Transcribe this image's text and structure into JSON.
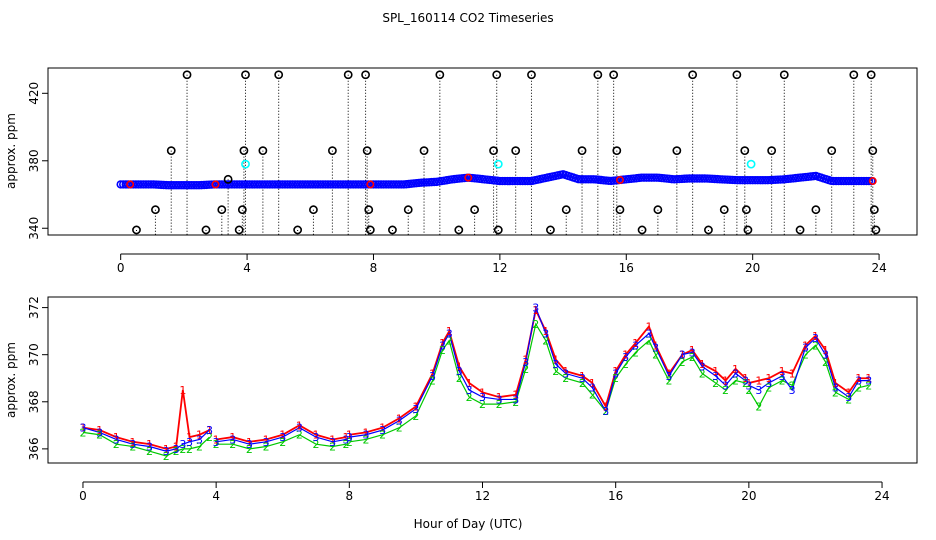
{
  "chart_data": [
    {
      "type": "scatter",
      "title": "SPL_160114  CO2 Timeseries",
      "xlabel": "",
      "ylabel": "approx. ppm",
      "xlim": [
        -2.3,
        25.2
      ],
      "ylim": [
        336,
        435
      ],
      "xticks": [
        0,
        4,
        8,
        12,
        16,
        20,
        24
      ],
      "yticks": [
        340,
        380,
        420
      ],
      "grid": false,
      "legend": "none",
      "colors": {
        "main": "#0000ff",
        "secondary": "#ff0000",
        "outlier": "#000000",
        "flag": "#00ffff"
      },
      "base_series": {
        "marker": "o",
        "x": [
          0,
          0.5,
          1,
          1.5,
          2,
          2.5,
          3,
          3.5,
          4,
          4.5,
          5,
          5.5,
          6,
          6.5,
          7,
          7.5,
          8,
          8.5,
          9,
          9.5,
          10,
          10.5,
          11,
          11.5,
          12,
          12.5,
          13,
          13.5,
          14,
          14.5,
          15,
          15.5,
          16,
          16.5,
          17,
          17.5,
          18,
          18.5,
          19,
          19.5,
          20,
          20.5,
          21,
          21.5,
          22,
          22.5,
          23,
          23.5,
          23.8
        ],
        "y": [
          366,
          366,
          366,
          365.5,
          365.5,
          365.5,
          366,
          366,
          366,
          366,
          366,
          366,
          366,
          366,
          366,
          366,
          366,
          366,
          366,
          367,
          367.5,
          369,
          370,
          369,
          368,
          368,
          368,
          370,
          372,
          369,
          369,
          368,
          369,
          370,
          370,
          369,
          369.5,
          369.5,
          369,
          368.5,
          368.5,
          368.5,
          369,
          370,
          371,
          368,
          368,
          368,
          368
        ]
      },
      "outlier_points": {
        "marker": "o",
        "x": [
          0.5,
          1.1,
          1.6,
          2.1,
          2.7,
          3.2,
          3.4,
          3.75,
          3.85,
          3.9,
          3.95,
          4.5,
          5.0,
          5.6,
          6.1,
          6.7,
          7.2,
          7.75,
          7.8,
          7.85,
          7.9,
          8.6,
          9.1,
          9.6,
          10.1,
          10.7,
          11.2,
          11.8,
          11.9,
          11.95,
          12.5,
          13.0,
          13.6,
          14.1,
          14.6,
          15.1,
          15.6,
          15.7,
          15.8,
          16.5,
          17.0,
          17.6,
          18.1,
          18.6,
          19.1,
          19.5,
          19.75,
          19.8,
          19.85,
          20.6,
          21.0,
          21.5,
          22.0,
          22.5,
          23.2,
          23.75,
          23.8,
          23.85,
          23.9
        ],
        "y": [
          339,
          351,
          386,
          431,
          339,
          351,
          369,
          339,
          351,
          386,
          431,
          386,
          431,
          339,
          351,
          386,
          431,
          431,
          386,
          351,
          339,
          339,
          351,
          386,
          431,
          339,
          351,
          386,
          431,
          339,
          386,
          431,
          339,
          351,
          386,
          431,
          431,
          386,
          351,
          339,
          351,
          386,
          431,
          339,
          351,
          431,
          386,
          351,
          339,
          386,
          431,
          339,
          351,
          386,
          431,
          431,
          386,
          351,
          339
        ]
      },
      "flag_points": {
        "marker": "o",
        "x": [
          3.95,
          11.95,
          19.95
        ],
        "y": [
          378,
          378,
          378
        ]
      }
    },
    {
      "type": "line",
      "title": "",
      "xlabel": "Hour of Day (UTC)",
      "ylabel": "approx. ppm",
      "xlim": [
        -1.05,
        25.05
      ],
      "ylim": [
        365.4,
        372.45
      ],
      "xticks": [
        0,
        4,
        8,
        12,
        16,
        20,
        24
      ],
      "yticks": [
        366,
        368,
        370,
        372
      ],
      "grid": false,
      "legend": "none",
      "series": [
        {
          "marker": "1",
          "color": "#ff0000",
          "x": [
            0,
            0.5,
            1,
            1.5,
            2,
            2.5,
            2.8,
            3.0,
            3.2,
            3.5,
            3.8,
            "gap",
            4.0,
            4.5,
            5,
            5.5,
            6,
            6.5,
            7,
            7.5,
            7.9,
            "gap",
            8.0,
            8.5,
            9,
            9.5,
            10,
            10.5,
            10.8,
            11.0,
            11.3,
            11.6,
            12,
            12.5,
            13,
            13.3,
            13.6,
            13.9,
            14.2,
            14.5,
            15,
            15.3,
            15.7,
            16,
            16.3,
            16.6,
            17,
            17.2,
            17.6,
            18,
            18.3,
            18.6,
            19,
            19.3,
            19.6,
            19.9,
            "gap",
            20.0,
            20.3,
            20.6,
            21,
            21.3,
            21.7,
            22,
            22.3,
            22.6,
            23,
            23.3,
            23.6
          ],
          "y": [
            366.9,
            366.8,
            366.5,
            366.3,
            366.2,
            366.0,
            366.1,
            368.5,
            366.5,
            366.6,
            366.8,
            null,
            366.4,
            366.5,
            366.3,
            366.4,
            366.6,
            367.0,
            366.6,
            366.4,
            366.5,
            null,
            366.6,
            366.7,
            366.9,
            367.3,
            367.8,
            369.2,
            370.5,
            371.0,
            369.5,
            368.8,
            368.4,
            368.2,
            368.3,
            369.8,
            371.9,
            371.0,
            369.8,
            369.3,
            369.1,
            368.8,
            367.8,
            369.3,
            370.0,
            370.5,
            371.2,
            370.4,
            369.2,
            370.0,
            370.2,
            369.6,
            369.3,
            368.9,
            369.4,
            369.0,
            null,
            368.8,
            368.9,
            369.0,
            369.3,
            369.2,
            370.4,
            370.8,
            370.2,
            368.8,
            368.4,
            369.0,
            369.0
          ]
        },
        {
          "marker": "2",
          "color": "#00c800",
          "x": [
            0,
            0.5,
            1,
            1.5,
            2,
            2.5,
            2.8,
            3.0,
            3.2,
            3.5,
            3.8,
            "gap",
            4.0,
            4.5,
            5,
            5.5,
            6,
            6.5,
            7,
            7.5,
            7.9,
            "gap",
            8.0,
            8.5,
            9,
            9.5,
            10,
            10.5,
            10.8,
            11.0,
            11.3,
            11.6,
            12,
            12.5,
            13,
            13.3,
            13.6,
            13.9,
            14.2,
            14.5,
            15,
            15.3,
            15.7,
            16,
            16.3,
            16.6,
            17,
            17.2,
            17.6,
            18,
            18.3,
            18.6,
            19,
            19.3,
            19.6,
            19.9,
            "gap",
            20.0,
            20.3,
            20.6,
            21,
            21.3,
            21.7,
            22,
            22.3,
            22.6,
            23,
            23.3,
            23.6
          ],
          "y": [
            366.7,
            366.6,
            366.2,
            366.1,
            365.9,
            365.7,
            365.9,
            366.0,
            366.0,
            366.1,
            366.5,
            null,
            366.2,
            366.2,
            366.0,
            366.1,
            366.3,
            366.6,
            366.2,
            366.1,
            366.2,
            null,
            366.3,
            366.4,
            366.6,
            366.9,
            367.4,
            368.9,
            370.2,
            370.6,
            369.0,
            368.2,
            367.9,
            367.9,
            368.0,
            369.4,
            371.3,
            370.6,
            369.3,
            369.0,
            368.8,
            368.3,
            367.6,
            369.0,
            369.6,
            370.1,
            370.6,
            370.0,
            368.9,
            369.7,
            369.9,
            369.2,
            368.8,
            368.5,
            368.9,
            368.8,
            null,
            368.5,
            367.8,
            368.6,
            368.9,
            368.7,
            370.0,
            370.4,
            369.7,
            368.4,
            368.1,
            368.6,
            368.7
          ]
        },
        {
          "marker": "3",
          "color": "#0000ff",
          "x": [
            0,
            0.5,
            1,
            1.5,
            2,
            2.5,
            2.8,
            3.0,
            3.2,
            3.5,
            3.8,
            "gap",
            4.0,
            4.5,
            5,
            5.5,
            6,
            6.5,
            7,
            7.5,
            7.9,
            "gap",
            8.0,
            8.5,
            9,
            9.5,
            10,
            10.5,
            10.8,
            11.0,
            11.3,
            11.6,
            12,
            12.5,
            13,
            13.3,
            13.6,
            13.9,
            14.2,
            14.5,
            15,
            15.3,
            15.7,
            16,
            16.3,
            16.6,
            17,
            17.2,
            17.6,
            18,
            18.3,
            18.6,
            19,
            19.3,
            19.6,
            19.9,
            "gap",
            20.0,
            20.3,
            20.6,
            21,
            21.3,
            21.7,
            22,
            22.3,
            22.6,
            23,
            23.3,
            23.6
          ],
          "y": [
            366.9,
            366.7,
            366.4,
            366.2,
            366.1,
            365.9,
            366.0,
            366.2,
            366.3,
            366.4,
            366.8,
            null,
            366.3,
            366.4,
            366.2,
            366.3,
            366.5,
            366.9,
            366.5,
            366.3,
            366.4,
            null,
            366.5,
            366.6,
            366.8,
            367.2,
            367.7,
            369.1,
            370.4,
            370.9,
            369.3,
            368.5,
            368.2,
            368.1,
            368.1,
            369.7,
            372.0,
            370.9,
            369.6,
            369.2,
            369.0,
            368.6,
            367.6,
            369.2,
            369.9,
            370.4,
            370.9,
            370.3,
            369.1,
            370.0,
            370.1,
            369.5,
            369.1,
            368.7,
            369.2,
            368.9,
            null,
            368.7,
            368.5,
            368.8,
            369.1,
            368.5,
            370.3,
            370.7,
            370.0,
            368.6,
            368.2,
            368.9,
            368.9
          ]
        }
      ]
    }
  ]
}
